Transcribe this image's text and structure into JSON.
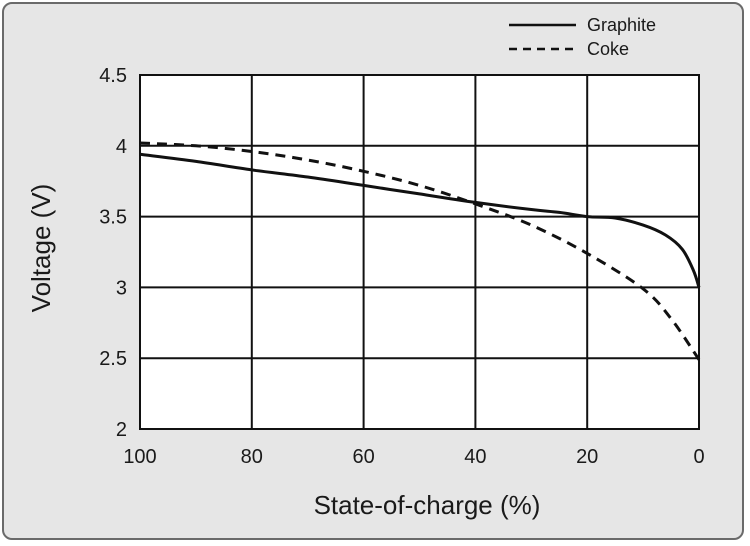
{
  "chart_data": {
    "type": "line",
    "xlabel": "State-of-charge (%)",
    "ylabel": "Voltage (V)",
    "xlim": [
      100,
      0
    ],
    "ylim": [
      2,
      4.5
    ],
    "x_ticks": [
      "100",
      "80",
      "60",
      "40",
      "20",
      "0"
    ],
    "y_ticks": [
      "2",
      "2.5",
      "3",
      "3.5",
      "4",
      "4.5"
    ],
    "grid": true,
    "legend": "top-right",
    "series": [
      {
        "name": "Graphite",
        "style": "solid",
        "color": "#111111",
        "points": [
          [
            100,
            3.94
          ],
          [
            90,
            3.89
          ],
          [
            80,
            3.83
          ],
          [
            70,
            3.78
          ],
          [
            60,
            3.72
          ],
          [
            50,
            3.66
          ],
          [
            40,
            3.6
          ],
          [
            30,
            3.55
          ],
          [
            25,
            3.53
          ],
          [
            20,
            3.5
          ],
          [
            15,
            3.49
          ],
          [
            10,
            3.44
          ],
          [
            6,
            3.37
          ],
          [
            3,
            3.27
          ],
          [
            1,
            3.12
          ],
          [
            0,
            3.0
          ]
        ]
      },
      {
        "name": "Coke",
        "style": "dashed",
        "color": "#111111",
        "points": [
          [
            100,
            4.02
          ],
          [
            90,
            4.0
          ],
          [
            80,
            3.96
          ],
          [
            70,
            3.9
          ],
          [
            60,
            3.82
          ],
          [
            50,
            3.72
          ],
          [
            40,
            3.59
          ],
          [
            30,
            3.44
          ],
          [
            20,
            3.24
          ],
          [
            10,
            2.99
          ],
          [
            5,
            2.78
          ],
          [
            0,
            2.49
          ]
        ]
      }
    ]
  }
}
